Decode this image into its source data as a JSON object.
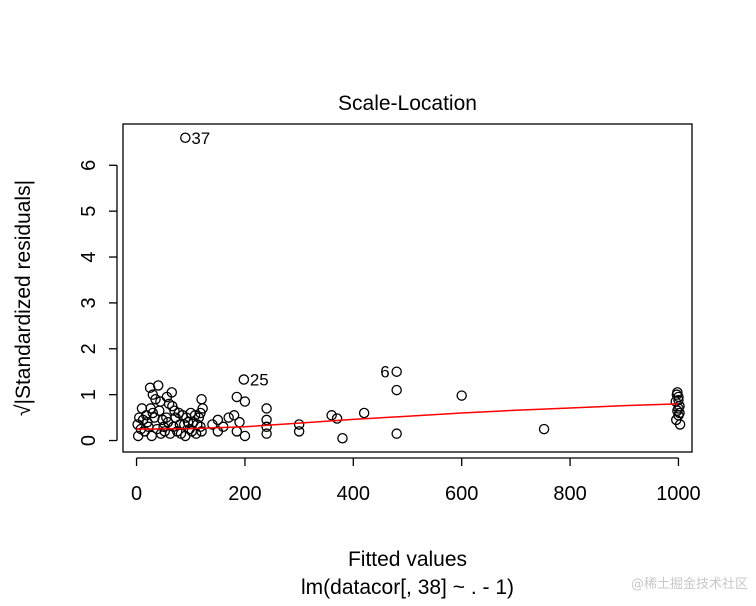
{
  "chart_data": {
    "type": "scatter",
    "title": "Scale-Location",
    "xlabel": "Fitted values",
    "xlabel_sub": "lm(datacor[, 38] ~ . - 1)",
    "ylabel": "√|Standardized residuals|",
    "xlim": [
      -25,
      1025
    ],
    "ylim": [
      -0.25,
      6.9
    ],
    "x_ticks": [
      0,
      200,
      400,
      600,
      800,
      1000
    ],
    "y_ticks": [
      0,
      1,
      2,
      3,
      4,
      5,
      6
    ],
    "grid": false,
    "point_color": "#000000",
    "smooth_color": "#ff0000",
    "points": [
      {
        "x": 90,
        "y": 6.6
      },
      {
        "x": 198,
        "y": 1.33
      },
      {
        "x": 480,
        "y": 1.5
      },
      {
        "x": 480,
        "y": 1.1
      },
      {
        "x": 600,
        "y": 0.98
      },
      {
        "x": 420,
        "y": 0.6
      },
      {
        "x": 360,
        "y": 0.55
      },
      {
        "x": 370,
        "y": 0.48
      },
      {
        "x": 380,
        "y": 0.05
      },
      {
        "x": 480,
        "y": 0.15
      },
      {
        "x": 752,
        "y": 0.25
      },
      {
        "x": 300,
        "y": 0.35
      },
      {
        "x": 300,
        "y": 0.2
      },
      {
        "x": 240,
        "y": 0.7
      },
      {
        "x": 240,
        "y": 0.45
      },
      {
        "x": 240,
        "y": 0.3
      },
      {
        "x": 240,
        "y": 0.15
      },
      {
        "x": 185,
        "y": 0.95
      },
      {
        "x": 200,
        "y": 0.85
      },
      {
        "x": 180,
        "y": 0.55
      },
      {
        "x": 190,
        "y": 0.4
      },
      {
        "x": 185,
        "y": 0.2
      },
      {
        "x": 200,
        "y": 0.1
      },
      {
        "x": 170,
        "y": 0.5
      },
      {
        "x": 160,
        "y": 0.3
      },
      {
        "x": 150,
        "y": 0.45
      },
      {
        "x": 150,
        "y": 0.2
      },
      {
        "x": 140,
        "y": 0.35
      },
      {
        "x": 120,
        "y": 0.9
      },
      {
        "x": 122,
        "y": 0.7
      },
      {
        "x": 115,
        "y": 0.5
      },
      {
        "x": 118,
        "y": 0.3
      },
      {
        "x": 110,
        "y": 0.15
      },
      {
        "x": 100,
        "y": 0.6
      },
      {
        "x": 95,
        "y": 0.4
      },
      {
        "x": 98,
        "y": 0.25
      },
      {
        "x": 90,
        "y": 0.1
      },
      {
        "x": 85,
        "y": 0.55
      },
      {
        "x": 80,
        "y": 0.35
      },
      {
        "x": 75,
        "y": 0.2
      },
      {
        "x": 70,
        "y": 0.65
      },
      {
        "x": 65,
        "y": 1.05
      },
      {
        "x": 60,
        "y": 0.8
      },
      {
        "x": 55,
        "y": 0.5
      },
      {
        "x": 50,
        "y": 0.3
      },
      {
        "x": 45,
        "y": 0.15
      },
      {
        "x": 40,
        "y": 1.2
      },
      {
        "x": 35,
        "y": 0.9
      },
      {
        "x": 30,
        "y": 0.6
      },
      {
        "x": 25,
        "y": 1.15
      },
      {
        "x": 20,
        "y": 0.4
      },
      {
        "x": 15,
        "y": 0.2
      },
      {
        "x": 10,
        "y": 0.7
      },
      {
        "x": 5,
        "y": 0.5
      },
      {
        "x": 3,
        "y": 0.1
      },
      {
        "x": 2,
        "y": 0.35
      },
      {
        "x": 8,
        "y": 0.25
      },
      {
        "x": 12,
        "y": 0.45
      },
      {
        "x": 18,
        "y": 0.55
      },
      {
        "x": 22,
        "y": 0.3
      },
      {
        "x": 28,
        "y": 0.1
      },
      {
        "x": 33,
        "y": 0.5
      },
      {
        "x": 38,
        "y": 0.25
      },
      {
        "x": 42,
        "y": 0.65
      },
      {
        "x": 48,
        "y": 0.45
      },
      {
        "x": 52,
        "y": 0.2
      },
      {
        "x": 58,
        "y": 0.4
      },
      {
        "x": 62,
        "y": 0.15
      },
      {
        "x": 68,
        "y": 0.3
      },
      {
        "x": 72,
        "y": 0.5
      },
      {
        "x": 78,
        "y": 0.6
      },
      {
        "x": 82,
        "y": 0.15
      },
      {
        "x": 88,
        "y": 0.35
      },
      {
        "x": 92,
        "y": 0.5
      },
      {
        "x": 102,
        "y": 0.2
      },
      {
        "x": 105,
        "y": 0.4
      },
      {
        "x": 108,
        "y": 0.55
      },
      {
        "x": 112,
        "y": 0.35
      },
      {
        "x": 118,
        "y": 0.6
      },
      {
        "x": 120,
        "y": 0.2
      },
      {
        "x": 56,
        "y": 0.95
      },
      {
        "x": 44,
        "y": 0.85
      },
      {
        "x": 30,
        "y": 1.0
      },
      {
        "x": 66,
        "y": 0.75
      },
      {
        "x": 26,
        "y": 0.7
      },
      {
        "x": 998,
        "y": 1.05
      },
      {
        "x": 1000,
        "y": 0.95
      },
      {
        "x": 995,
        "y": 0.85
      },
      {
        "x": 1002,
        "y": 0.75
      },
      {
        "x": 998,
        "y": 0.65
      },
      {
        "x": 1000,
        "y": 0.55
      },
      {
        "x": 996,
        "y": 0.45
      },
      {
        "x": 1003,
        "y": 0.35
      },
      {
        "x": 1000,
        "y": 0.88
      },
      {
        "x": 1002,
        "y": 0.6
      },
      {
        "x": 997,
        "y": 1.0
      },
      {
        "x": 1000,
        "y": 0.7
      }
    ],
    "labeled_points": [
      {
        "x": 90,
        "y": 6.6,
        "label": "37",
        "side": "right"
      },
      {
        "x": 198,
        "y": 1.33,
        "label": "25",
        "side": "right"
      },
      {
        "x": 480,
        "y": 1.5,
        "label": "6",
        "side": "left"
      }
    ],
    "smooth_line": [
      {
        "x": 0,
        "y": 0.25
      },
      {
        "x": 100,
        "y": 0.26
      },
      {
        "x": 200,
        "y": 0.3
      },
      {
        "x": 300,
        "y": 0.38
      },
      {
        "x": 400,
        "y": 0.46
      },
      {
        "x": 500,
        "y": 0.53
      },
      {
        "x": 600,
        "y": 0.6
      },
      {
        "x": 700,
        "y": 0.66
      },
      {
        "x": 800,
        "y": 0.71
      },
      {
        "x": 900,
        "y": 0.76
      },
      {
        "x": 1000,
        "y": 0.8
      }
    ]
  },
  "watermark": "@稀土掘金技术社区"
}
